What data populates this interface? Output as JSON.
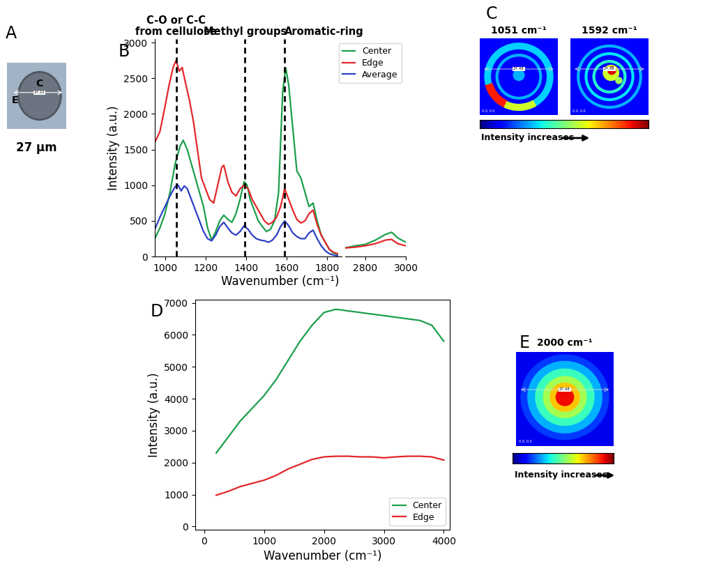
{
  "chart_data": [
    {
      "type": "photo",
      "panel_label": "A",
      "center_label": "C",
      "edge_label": "E",
      "measure_label": "27.22",
      "caption": "27 µm"
    },
    {
      "type": "line",
      "panel_label": "B",
      "xlabel": "Wavenumber (cm⁻¹)",
      "ylabel": "Intensity (a.u.)",
      "segments": [
        {
          "xlim": [
            950,
            1870
          ],
          "xticks": [
            1000,
            1200,
            1400,
            1600,
            1800
          ]
        },
        {
          "xlim": [
            2700,
            3000
          ],
          "xticks": [
            2800,
            3000
          ]
        }
      ],
      "ylim": [
        0,
        3050
      ],
      "yticks": [
        0,
        500,
        1000,
        1500,
        2000,
        2500,
        3000
      ],
      "legend": "upper right",
      "annotations": [
        {
          "x": 1055,
          "text": "C-O or C-C\nfrom cellulose"
        },
        {
          "x": 1395,
          "text": "Methyl groups"
        },
        {
          "x": 1590,
          "text": "Aromatic-ring"
        }
      ],
      "series": [
        {
          "name": "Center",
          "color": "#1a9e4a",
          "x": [
            950,
            975,
            1000,
            1025,
            1050,
            1075,
            1090,
            1110,
            1130,
            1150,
            1170,
            1190,
            1210,
            1230,
            1250,
            1270,
            1290,
            1310,
            1330,
            1350,
            1370,
            1390,
            1405,
            1420,
            1440,
            1460,
            1480,
            1500,
            1520,
            1540,
            1560,
            1580,
            1595,
            1610,
            1630,
            1650,
            1670,
            1690,
            1710,
            1730,
            1750,
            1770,
            1790,
            1810,
            1830,
            1850,
            2000,
            2700,
            2750,
            2800,
            2850,
            2900,
            2930,
            2960,
            3000
          ],
          "values": [
            250,
            400,
            600,
            900,
            1300,
            1550,
            1630,
            1500,
            1300,
            1100,
            900,
            700,
            400,
            230,
            350,
            500,
            580,
            520,
            480,
            600,
            800,
            1050,
            1000,
            800,
            650,
            500,
            420,
            350,
            380,
            500,
            900,
            2300,
            2650,
            2400,
            1800,
            1200,
            1100,
            900,
            700,
            750,
            500,
            300,
            200,
            100,
            50,
            30,
            null,
            120,
            150,
            170,
            230,
            310,
            340,
            260,
            200
          ]
        },
        {
          "name": "Edge",
          "color": "#e3262b",
          "x": [
            950,
            975,
            1000,
            1020,
            1040,
            1055,
            1070,
            1085,
            1100,
            1120,
            1140,
            1160,
            1180,
            1200,
            1220,
            1240,
            1260,
            1280,
            1290,
            1310,
            1330,
            1350,
            1370,
            1390,
            1410,
            1430,
            1450,
            1470,
            1490,
            1510,
            1530,
            1550,
            1570,
            1590,
            1610,
            1630,
            1650,
            1670,
            1690,
            1710,
            1730,
            1750,
            1770,
            1790,
            1810,
            1830,
            1850,
            2000,
            2700,
            2750,
            2800,
            2850,
            2900,
            2930,
            2960,
            3000
          ],
          "values": [
            1600,
            1750,
            2100,
            2400,
            2650,
            2750,
            2600,
            2650,
            2450,
            2200,
            1900,
            1500,
            1100,
            950,
            800,
            750,
            1000,
            1250,
            1280,
            1050,
            900,
            850,
            950,
            1000,
            950,
            800,
            700,
            600,
            500,
            450,
            480,
            550,
            700,
            950,
            800,
            650,
            520,
            470,
            500,
            600,
            650,
            450,
            300,
            200,
            100,
            60,
            40,
            null,
            120,
            130,
            150,
            180,
            230,
            240,
            180,
            150
          ]
        },
        {
          "name": "Average",
          "color": "#2b3fc4",
          "x": [
            950,
            975,
            1000,
            1025,
            1050,
            1065,
            1080,
            1095,
            1110,
            1130,
            1150,
            1170,
            1190,
            1210,
            1230,
            1250,
            1270,
            1290,
            1310,
            1330,
            1350,
            1370,
            1390,
            1410,
            1430,
            1450,
            1470,
            1490,
            1510,
            1530,
            1550,
            1570,
            1590,
            1610,
            1630,
            1650,
            1670,
            1690,
            1710,
            1730,
            1750,
            1770,
            1790,
            1810,
            1830,
            1850
          ],
          "values": [
            380,
            550,
            700,
            850,
            980,
            1000,
            920,
            990,
            950,
            800,
            650,
            500,
            350,
            250,
            220,
            300,
            420,
            480,
            400,
            330,
            300,
            350,
            430,
            380,
            300,
            250,
            230,
            220,
            200,
            230,
            300,
            420,
            500,
            430,
            330,
            280,
            250,
            250,
            330,
            370,
            250,
            150,
            80,
            40,
            20,
            10
          ]
        }
      ]
    },
    {
      "type": "map",
      "panel_label": "C",
      "colorbar_label": "Intensity increases",
      "maps": [
        {
          "title": "1051 cm⁻¹",
          "measure_label": "27.48",
          "origin_label": "0.0, 0.0"
        },
        {
          "title": "1592 cm⁻¹",
          "measure_label": "27.48",
          "origin_label": "0.0, 0.0"
        }
      ]
    },
    {
      "type": "line",
      "panel_label": "D",
      "xlabel": "Wavenumber (cm⁻¹)",
      "ylabel": "Intensity (a.u.)",
      "xlim": [
        -150,
        4100
      ],
      "xticks": [
        0,
        1000,
        2000,
        3000,
        4000
      ],
      "ylim": [
        -100,
        7100
      ],
      "yticks": [
        0,
        1000,
        2000,
        3000,
        4000,
        5000,
        6000,
        7000
      ],
      "legend": "lower right",
      "series": [
        {
          "name": "Center",
          "color": "#1a9e4a",
          "x": [
            200,
            400,
            600,
            800,
            1000,
            1200,
            1400,
            1600,
            1800,
            2000,
            2200,
            2400,
            2600,
            2800,
            3000,
            3200,
            3400,
            3600,
            3800,
            4000
          ],
          "values": [
            2300,
            2800,
            3300,
            3700,
            4100,
            4600,
            5200,
            5800,
            6300,
            6700,
            6800,
            6750,
            6700,
            6650,
            6600,
            6550,
            6500,
            6450,
            6300,
            5800
          ]
        },
        {
          "name": "Edge",
          "color": "#e3262b",
          "x": [
            200,
            400,
            600,
            800,
            1000,
            1200,
            1400,
            1600,
            1800,
            2000,
            2200,
            2400,
            2600,
            2800,
            3000,
            3200,
            3400,
            3600,
            3800,
            4000
          ],
          "values": [
            980,
            1100,
            1250,
            1350,
            1450,
            1600,
            1800,
            1950,
            2100,
            2180,
            2200,
            2200,
            2180,
            2180,
            2150,
            2180,
            2200,
            2200,
            2180,
            2080
          ]
        }
      ]
    },
    {
      "type": "map",
      "panel_label": "E",
      "colorbar_label": "Intensity increases",
      "maps": [
        {
          "title": "2000 cm⁻¹",
          "measure_label": "27.48",
          "origin_label": "0.0, 0.0"
        }
      ]
    }
  ]
}
